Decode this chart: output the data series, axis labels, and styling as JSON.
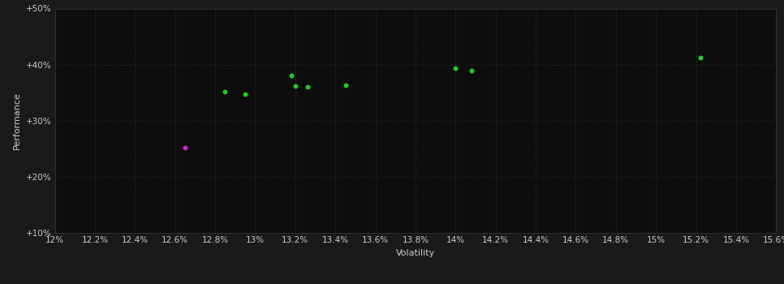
{
  "background_color": "#1a1a1a",
  "plot_bg_color": "#0d0d0d",
  "grid_color": "#3a3a3a",
  "text_color": "#cccccc",
  "xlabel": "Volatility",
  "ylabel": "Performance",
  "xlim": [
    0.12,
    0.156
  ],
  "ylim": [
    0.1,
    0.5
  ],
  "xticks": [
    0.12,
    0.122,
    0.124,
    0.126,
    0.128,
    0.13,
    0.132,
    0.134,
    0.136,
    0.138,
    0.14,
    0.142,
    0.144,
    0.146,
    0.148,
    0.15,
    0.152,
    0.154,
    0.156
  ],
  "yticks": [
    0.1,
    0.2,
    0.3,
    0.4,
    0.5
  ],
  "ytick_labels": [
    "+10%",
    "+20%",
    "+30%",
    "+40%",
    "+50%"
  ],
  "xtick_labels": [
    "12%",
    "12.2%",
    "12.4%",
    "12.6%",
    "12.8%",
    "13%",
    "13.2%",
    "13.4%",
    "13.6%",
    "13.8%",
    "14%",
    "14.2%",
    "14.4%",
    "14.6%",
    "14.8%",
    "15%",
    "15.2%",
    "15.4%",
    "15.6%"
  ],
  "green_points": [
    [
      0.1285,
      0.352
    ],
    [
      0.1295,
      0.348
    ],
    [
      0.1318,
      0.381
    ],
    [
      0.132,
      0.362
    ],
    [
      0.1326,
      0.36
    ],
    [
      0.1345,
      0.364
    ],
    [
      0.14,
      0.393
    ],
    [
      0.1408,
      0.39
    ],
    [
      0.1522,
      0.413
    ]
  ],
  "magenta_points": [
    [
      0.1265,
      0.252
    ]
  ],
  "green_color": "#22cc22",
  "magenta_color": "#cc22cc",
  "marker_size": 18,
  "font_size": 7.5,
  "label_font_size": 8
}
